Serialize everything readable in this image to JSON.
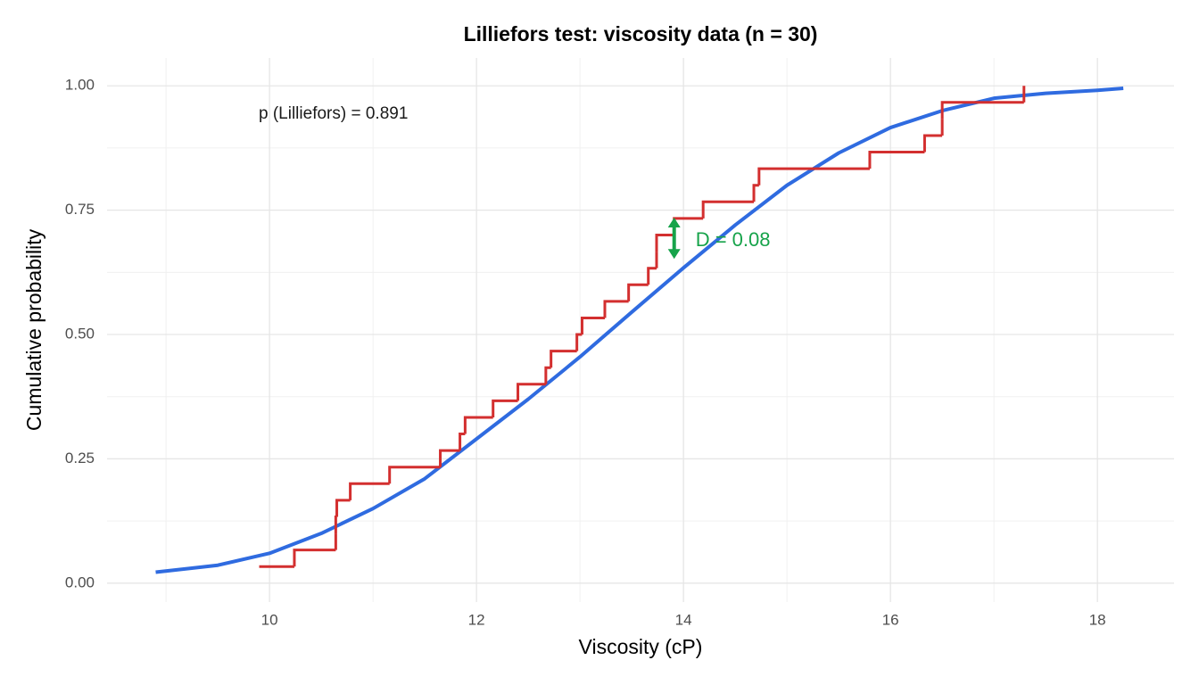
{
  "chart_data": {
    "type": "ecdf",
    "title": "Lilliefors test: viscosity data (n = 30)",
    "x_label": "Viscosity (cP)",
    "y_label": "Cumulative probability",
    "xlim": [
      8.43,
      18.74
    ],
    "ylim": [
      -0.038,
      1.056
    ],
    "xticks": [
      10,
      12,
      14,
      16,
      18
    ],
    "x_minor_ticks": [
      9,
      11,
      13,
      15,
      17
    ],
    "yticks": [
      {
        "value": 0,
        "label": "0.00"
      },
      {
        "value": 0.25,
        "label": "0.25"
      },
      {
        "value": 0.5,
        "label": "0.50"
      },
      {
        "value": 0.75,
        "label": "0.75"
      },
      {
        "value": 1,
        "label": "1.00"
      }
    ],
    "y_minor_ticks": [
      0.125,
      0.375,
      0.625,
      0.875
    ],
    "grid": true,
    "ecdf": {
      "color": "#d32f2f",
      "x": [
        9.9,
        10.24,
        10.64,
        10.64,
        10.65,
        10.78,
        11.16,
        11.65,
        11.84,
        11.89,
        12.16,
        12.4,
        12.67,
        12.72,
        12.97,
        13.02,
        13.24,
        13.47,
        13.66,
        13.74,
        13.74,
        13.91,
        14.19,
        14.68,
        14.73,
        15.8,
        16.33,
        16.5,
        16.5,
        17.29
      ],
      "y": [
        0.0333,
        0.0667,
        0.1,
        0.1333,
        0.1667,
        0.2,
        0.2333,
        0.2667,
        0.3,
        0.3333,
        0.3667,
        0.4,
        0.4333,
        0.4667,
        0.5,
        0.5333,
        0.5667,
        0.6,
        0.6333,
        0.6667,
        0.7,
        0.7333,
        0.7667,
        0.8,
        0.8333,
        0.8667,
        0.9,
        0.9333,
        0.9667,
        1.0
      ]
    },
    "normal_cdf": {
      "color": "#2f6be0",
      "x": [
        8.9,
        9.5,
        10,
        10.5,
        11,
        11.5,
        12,
        12.5,
        13,
        13.5,
        14,
        14.5,
        15,
        15.5,
        16,
        16.5,
        17,
        17.5,
        18,
        18.25
      ],
      "y": [
        0.022,
        0.036,
        0.06,
        0.1,
        0.15,
        0.21,
        0.29,
        0.37,
        0.455,
        0.545,
        0.634,
        0.72,
        0.8,
        0.865,
        0.916,
        0.95,
        0.975,
        0.985,
        0.991,
        0.995
      ]
    },
    "d_statistic": {
      "color": "#16a34a",
      "label": "D = 0.08",
      "x": 13.91,
      "y": [
        0.652,
        0.735
      ]
    },
    "p_label": "p (Lilliefors) = 0.891"
  }
}
